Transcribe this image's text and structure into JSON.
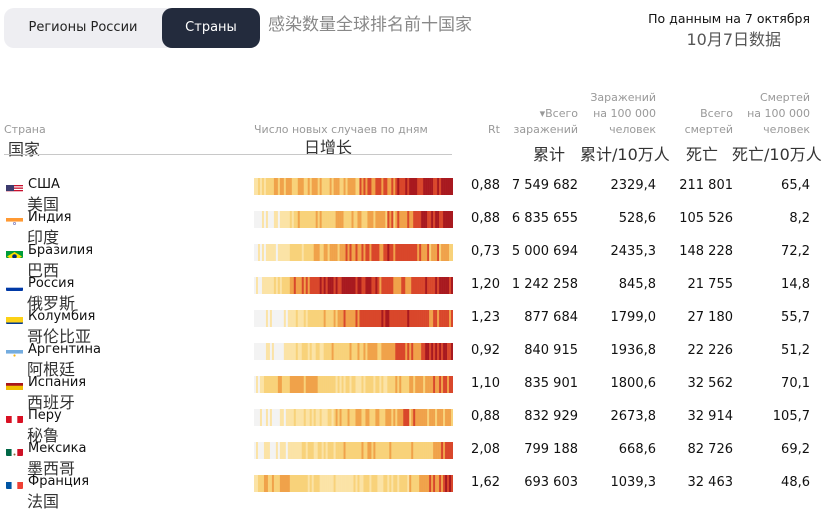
{
  "tabs": [
    {
      "label": "Регионы России",
      "active": false
    },
    {
      "label": "Страны",
      "active": true
    }
  ],
  "title_zh": "感染数量全球排名前十国家",
  "date": {
    "ru": "По данным на 7 октября",
    "zh": "10月7日数据"
  },
  "headers": {
    "country": "Страна",
    "country_zh": "国家",
    "daily": "Число новых случаев по дням",
    "daily_zh": "日增长",
    "rt": "Rt",
    "total_l1": "▾Всего",
    "total_l2": "заражений",
    "total_zh": "累计",
    "per100k_l1": "Заражений",
    "per100k_l2": "на 100 000",
    "per100k_l3": "человек",
    "per100k_zh": "累计/10万人",
    "deaths_l1": "Всего",
    "deaths_l2": "смертей",
    "deaths_zh": "死亡",
    "deaths100k_l1": "Смертей",
    "deaths100k_l2": "на 100 000",
    "deaths100k_l3": "человек",
    "deaths100k_zh": "死亡/10万人"
  },
  "colors": {
    "lightest": "#f3f3f3",
    "pale": "#fbe3a6",
    "yellow": "#f8d27a",
    "orange": "#f0a24a",
    "red": "#d9472b",
    "dark_red": "#a8191f"
  },
  "rows": [
    {
      "flag": "us-flag-icon",
      "name": "США",
      "zh": "美国",
      "rt": "0,88",
      "total": "7 549 682",
      "per100k": "2329,4",
      "deaths": "211 801",
      "deaths100k": "65,4",
      "heat": [
        0.2,
        0.5,
        0.5,
        0.5,
        0.55,
        0.6,
        0.7,
        0.8,
        0.85,
        0.9
      ]
    },
    {
      "flag": "in-flag-icon",
      "name": "Индия",
      "zh": "印度",
      "rt": "0,88",
      "total": "6 835 655",
      "per100k": "528,6",
      "deaths": "105 526",
      "deaths100k": "8,2",
      "heat": [
        0.05,
        0.1,
        0.45,
        0.45,
        0.45,
        0.5,
        0.55,
        0.65,
        0.8,
        0.9
      ]
    },
    {
      "flag": "br-flag-icon",
      "name": "Бразилия",
      "zh": "巴西",
      "rt": "0,73",
      "total": "5 000 694",
      "per100k": "2435,3",
      "deaths": "148 228",
      "deaths100k": "72,2",
      "heat": [
        0.05,
        0.1,
        0.35,
        0.5,
        0.6,
        0.7,
        0.75,
        0.7,
        0.6,
        0.55
      ]
    },
    {
      "flag": "ru-flag-icon",
      "name": "Россия",
      "zh": "俄罗斯",
      "rt": "1,20",
      "total": "1 242 258",
      "per100k": "845,8",
      "deaths": "21 755",
      "deaths100k": "14,8",
      "heat": [
        0.05,
        0.3,
        0.6,
        0.85,
        0.85,
        0.8,
        0.7,
        0.65,
        0.8,
        0.9
      ]
    },
    {
      "flag": "co-flag-icon",
      "name": "Колумбия",
      "zh": "哥伦比亚",
      "rt": "1,23",
      "total": "877 684",
      "per100k": "1799,0",
      "deaths": "27 180",
      "deaths100k": "55,7",
      "heat": [
        0.05,
        0.05,
        0.3,
        0.4,
        0.55,
        0.7,
        0.8,
        0.75,
        0.7,
        0.7
      ]
    },
    {
      "flag": "ar-flag-icon",
      "name": "Аргентина",
      "zh": "阿根廷",
      "rt": "0,92",
      "total": "840 915",
      "per100k": "1936,8",
      "deaths": "22 226",
      "deaths100k": "51,2",
      "heat": [
        0.05,
        0.1,
        0.3,
        0.35,
        0.45,
        0.5,
        0.6,
        0.7,
        0.75,
        0.8
      ]
    },
    {
      "flag": "es-flag-icon",
      "name": "Испания",
      "zh": "西班牙",
      "rt": "1,10",
      "total": "835 901",
      "per100k": "1800,6",
      "deaths": "32 562",
      "deaths100k": "70,1",
      "heat": [
        0.1,
        0.5,
        0.55,
        0.45,
        0.3,
        0.3,
        0.35,
        0.5,
        0.6,
        0.7
      ]
    },
    {
      "flag": "pe-flag-icon",
      "name": "Перу",
      "zh": "秘鲁",
      "rt": "0,88",
      "total": "832 929",
      "per100k": "2673,8",
      "deaths": "32 914",
      "deaths100k": "105,7",
      "heat": [
        0.05,
        0.05,
        0.3,
        0.35,
        0.45,
        0.5,
        0.55,
        0.6,
        0.55,
        0.5
      ]
    },
    {
      "flag": "mx-flag-icon",
      "name": "Мексика",
      "zh": "墨西哥",
      "rt": "2,08",
      "total": "799 188",
      "per100k": "668,6",
      "deaths": "82 726",
      "deaths100k": "69,2",
      "heat": [
        0.05,
        0.1,
        0.3,
        0.35,
        0.4,
        0.45,
        0.45,
        0.4,
        0.4,
        0.75
      ]
    },
    {
      "flag": "fr-flag-icon",
      "name": "Франция",
      "zh": "法国",
      "rt": "1,62",
      "total": "693 603",
      "per100k": "1039,3",
      "deaths": "32 463",
      "deaths100k": "48,6",
      "heat": [
        0.3,
        0.55,
        0.45,
        0.3,
        0.25,
        0.25,
        0.3,
        0.4,
        0.6,
        0.8
      ]
    }
  ]
}
